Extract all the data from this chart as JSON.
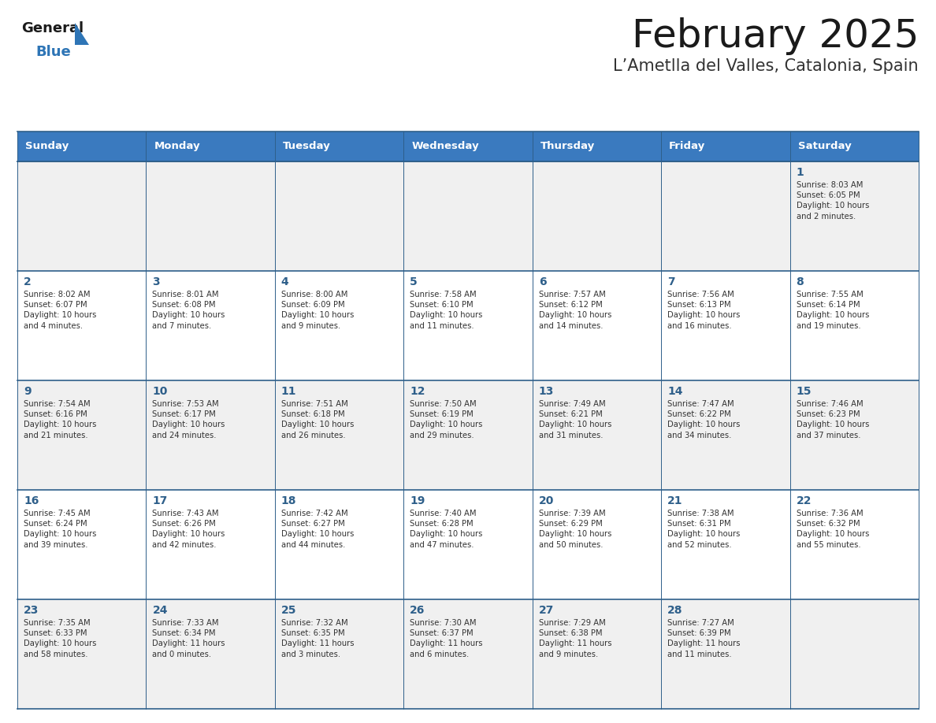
{
  "title": "February 2025",
  "subtitle": "L’Ametlla del Valles, Catalonia, Spain",
  "header_bg": "#3a7abf",
  "header_text": "#ffffff",
  "row_bg_odd": "#f0f0f0",
  "row_bg_even": "#ffffff",
  "border_color": "#2e5f8a",
  "day_headers": [
    "Sunday",
    "Monday",
    "Tuesday",
    "Wednesday",
    "Thursday",
    "Friday",
    "Saturday"
  ],
  "title_color": "#1a1a1a",
  "subtitle_color": "#333333",
  "day_number_color": "#2e5f8a",
  "cell_text_color": "#333333",
  "logo_general_color": "#1a1a1a",
  "logo_blue_color": "#2e75b6",
  "weeks": [
    [
      {
        "day": null,
        "text": ""
      },
      {
        "day": null,
        "text": ""
      },
      {
        "day": null,
        "text": ""
      },
      {
        "day": null,
        "text": ""
      },
      {
        "day": null,
        "text": ""
      },
      {
        "day": null,
        "text": ""
      },
      {
        "day": 1,
        "text": "Sunrise: 8:03 AM\nSunset: 6:05 PM\nDaylight: 10 hours\nand 2 minutes."
      }
    ],
    [
      {
        "day": 2,
        "text": "Sunrise: 8:02 AM\nSunset: 6:07 PM\nDaylight: 10 hours\nand 4 minutes."
      },
      {
        "day": 3,
        "text": "Sunrise: 8:01 AM\nSunset: 6:08 PM\nDaylight: 10 hours\nand 7 minutes."
      },
      {
        "day": 4,
        "text": "Sunrise: 8:00 AM\nSunset: 6:09 PM\nDaylight: 10 hours\nand 9 minutes."
      },
      {
        "day": 5,
        "text": "Sunrise: 7:58 AM\nSunset: 6:10 PM\nDaylight: 10 hours\nand 11 minutes."
      },
      {
        "day": 6,
        "text": "Sunrise: 7:57 AM\nSunset: 6:12 PM\nDaylight: 10 hours\nand 14 minutes."
      },
      {
        "day": 7,
        "text": "Sunrise: 7:56 AM\nSunset: 6:13 PM\nDaylight: 10 hours\nand 16 minutes."
      },
      {
        "day": 8,
        "text": "Sunrise: 7:55 AM\nSunset: 6:14 PM\nDaylight: 10 hours\nand 19 minutes."
      }
    ],
    [
      {
        "day": 9,
        "text": "Sunrise: 7:54 AM\nSunset: 6:16 PM\nDaylight: 10 hours\nand 21 minutes."
      },
      {
        "day": 10,
        "text": "Sunrise: 7:53 AM\nSunset: 6:17 PM\nDaylight: 10 hours\nand 24 minutes."
      },
      {
        "day": 11,
        "text": "Sunrise: 7:51 AM\nSunset: 6:18 PM\nDaylight: 10 hours\nand 26 minutes."
      },
      {
        "day": 12,
        "text": "Sunrise: 7:50 AM\nSunset: 6:19 PM\nDaylight: 10 hours\nand 29 minutes."
      },
      {
        "day": 13,
        "text": "Sunrise: 7:49 AM\nSunset: 6:21 PM\nDaylight: 10 hours\nand 31 minutes."
      },
      {
        "day": 14,
        "text": "Sunrise: 7:47 AM\nSunset: 6:22 PM\nDaylight: 10 hours\nand 34 minutes."
      },
      {
        "day": 15,
        "text": "Sunrise: 7:46 AM\nSunset: 6:23 PM\nDaylight: 10 hours\nand 37 minutes."
      }
    ],
    [
      {
        "day": 16,
        "text": "Sunrise: 7:45 AM\nSunset: 6:24 PM\nDaylight: 10 hours\nand 39 minutes."
      },
      {
        "day": 17,
        "text": "Sunrise: 7:43 AM\nSunset: 6:26 PM\nDaylight: 10 hours\nand 42 minutes."
      },
      {
        "day": 18,
        "text": "Sunrise: 7:42 AM\nSunset: 6:27 PM\nDaylight: 10 hours\nand 44 minutes."
      },
      {
        "day": 19,
        "text": "Sunrise: 7:40 AM\nSunset: 6:28 PM\nDaylight: 10 hours\nand 47 minutes."
      },
      {
        "day": 20,
        "text": "Sunrise: 7:39 AM\nSunset: 6:29 PM\nDaylight: 10 hours\nand 50 minutes."
      },
      {
        "day": 21,
        "text": "Sunrise: 7:38 AM\nSunset: 6:31 PM\nDaylight: 10 hours\nand 52 minutes."
      },
      {
        "day": 22,
        "text": "Sunrise: 7:36 AM\nSunset: 6:32 PM\nDaylight: 10 hours\nand 55 minutes."
      }
    ],
    [
      {
        "day": 23,
        "text": "Sunrise: 7:35 AM\nSunset: 6:33 PM\nDaylight: 10 hours\nand 58 minutes."
      },
      {
        "day": 24,
        "text": "Sunrise: 7:33 AM\nSunset: 6:34 PM\nDaylight: 11 hours\nand 0 minutes."
      },
      {
        "day": 25,
        "text": "Sunrise: 7:32 AM\nSunset: 6:35 PM\nDaylight: 11 hours\nand 3 minutes."
      },
      {
        "day": 26,
        "text": "Sunrise: 7:30 AM\nSunset: 6:37 PM\nDaylight: 11 hours\nand 6 minutes."
      },
      {
        "day": 27,
        "text": "Sunrise: 7:29 AM\nSunset: 6:38 PM\nDaylight: 11 hours\nand 9 minutes."
      },
      {
        "day": 28,
        "text": "Sunrise: 7:27 AM\nSunset: 6:39 PM\nDaylight: 11 hours\nand 11 minutes."
      },
      {
        "day": null,
        "text": ""
      }
    ]
  ]
}
